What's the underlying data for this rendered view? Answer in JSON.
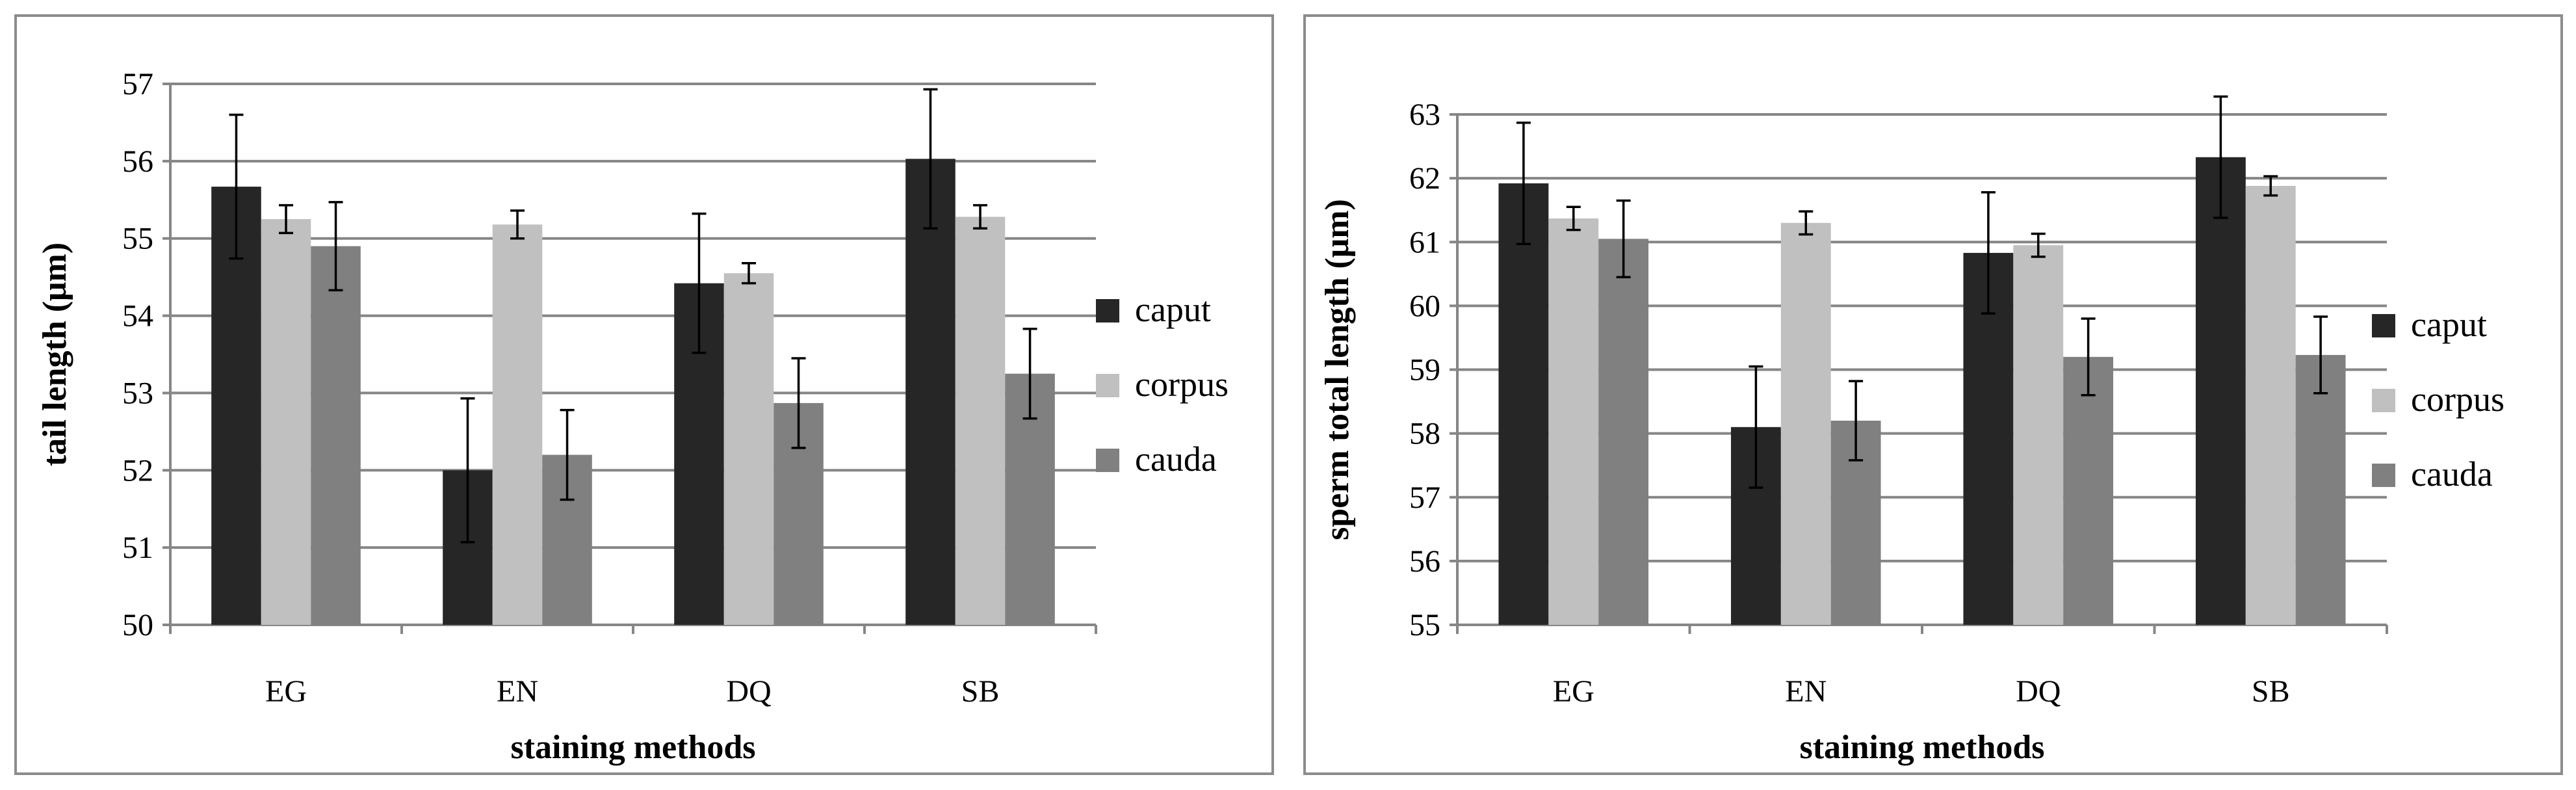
{
  "colors": {
    "caput": "#262626",
    "corpus": "#c0c0c0",
    "cauda": "#808080",
    "grid": "#868686",
    "error": "#000000"
  },
  "chart_data": [
    {
      "type": "bar",
      "categories": [
        "EG",
        "EN",
        "DQ",
        "SB"
      ],
      "xlabel": "staining methods",
      "ylabel": "tail length (μm)",
      "ylim": [
        50,
        57
      ],
      "yticks": [
        "50",
        "51",
        "52",
        "53",
        "54",
        "55",
        "56",
        "57"
      ],
      "grid": true,
      "legend_position": "right",
      "series": [
        {
          "name": "caput",
          "values": [
            55.67,
            52.0,
            54.42,
            56.03
          ],
          "errors": [
            0.93,
            0.93,
            0.9,
            0.9
          ]
        },
        {
          "name": "corpus",
          "values": [
            55.25,
            55.18,
            54.55,
            55.28
          ],
          "errors": [
            0.18,
            0.18,
            0.13,
            0.15
          ]
        },
        {
          "name": "cauda",
          "values": [
            54.9,
            52.2,
            52.87,
            53.25
          ],
          "errors": [
            0.57,
            0.58,
            0.58,
            0.58
          ]
        }
      ]
    },
    {
      "type": "bar",
      "categories": [
        "EG",
        "EN",
        "DQ",
        "SB"
      ],
      "xlabel": "staining methods",
      "ylabel": "sperm total length (μm)",
      "ylim": [
        55,
        63
      ],
      "yticks": [
        "55",
        "56",
        "57",
        "58",
        "59",
        "60",
        "61",
        "62",
        "63"
      ],
      "grid": true,
      "legend_position": "right",
      "series": [
        {
          "name": "caput",
          "values": [
            61.92,
            58.1,
            60.83,
            62.33
          ],
          "errors": [
            0.95,
            0.95,
            0.95,
            0.95
          ]
        },
        {
          "name": "corpus",
          "values": [
            61.37,
            61.3,
            60.95,
            61.88
          ],
          "errors": [
            0.18,
            0.18,
            0.18,
            0.15
          ]
        },
        {
          "name": "cauda",
          "values": [
            61.05,
            58.2,
            59.2,
            59.23
          ],
          "errors": [
            0.6,
            0.62,
            0.6,
            0.6
          ]
        }
      ]
    }
  ]
}
